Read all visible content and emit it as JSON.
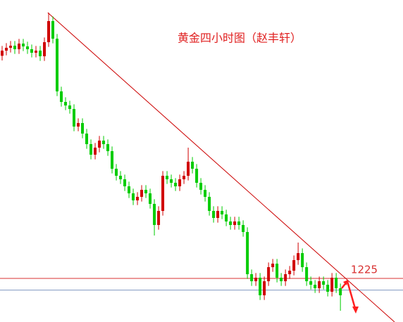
{
  "chart_data": {
    "type": "candlestick",
    "title": "黄金四小时图（赵丰轩）",
    "xlim": [
      -0.5,
      94.8
    ],
    "ylim": [
      1206.4,
      1343.8
    ],
    "up_color": "#d00000",
    "down_color": "#00cc00",
    "open": [
      1320.0,
      1322.2,
      1323.4,
      1324.3,
      1322.8,
      1325.2,
      1324.0,
      1322.8,
      1321.3,
      1322.2,
      1319.8,
      1325.8,
      1334.8,
      1327.3,
      1304.8,
      1300.3,
      1298.8,
      1297.3,
      1289.8,
      1291.3,
      1286.8,
      1282.3,
      1277.8,
      1280.8,
      1283.8,
      1282.3,
      1279.3,
      1271.8,
      1268.8,
      1267.3,
      1264.3,
      1261.3,
      1258.3,
      1259.8,
      1262.8,
      1261.3,
      1256.8,
      1247.8,
      1253.8,
      1268.8,
      1267.3,
      1265.8,
      1264.3,
      1267.3,
      1268.8,
      1274.8,
      1271.8,
      1265.8,
      1262.8,
      1259.8,
      1253.8,
      1250.8,
      1253.8,
      1252.3,
      1249.3,
      1247.8,
      1249.3,
      1247.8,
      1244.8,
      1226.8,
      1223.8,
      1225.3,
      1217.8,
      1223.8,
      1229.8,
      1231.3,
      1225.3,
      1223.8,
      1226.8,
      1228.3,
      1232.8,
      1235.8,
      1229.8,
      1223.8,
      1222.3,
      1220.8,
      1223.8,
      1222.3,
      1219.3,
      1225.3,
      1220.8
    ],
    "high": [
      1324.2,
      1325.4,
      1326.3,
      1326.3,
      1327.2,
      1327.2,
      1326.0,
      1324.8,
      1324.2,
      1324.2,
      1327.8,
      1338.4,
      1336.8,
      1329.3,
      1306.8,
      1302.3,
      1300.8,
      1299.3,
      1293.3,
      1293.3,
      1288.8,
      1284.3,
      1282.8,
      1285.8,
      1285.8,
      1284.3,
      1281.3,
      1273.8,
      1270.8,
      1269.3,
      1266.3,
      1263.3,
      1261.8,
      1264.8,
      1264.8,
      1263.3,
      1258.8,
      1255.8,
      1270.8,
      1270.8,
      1269.3,
      1267.8,
      1269.3,
      1270.8,
      1280.8,
      1276.8,
      1273.8,
      1267.8,
      1264.8,
      1261.8,
      1255.8,
      1255.8,
      1255.8,
      1254.3,
      1251.3,
      1251.3,
      1251.3,
      1249.8,
      1246.8,
      1228.8,
      1227.3,
      1227.3,
      1225.8,
      1231.8,
      1233.3,
      1233.3,
      1227.3,
      1228.8,
      1230.3,
      1234.8,
      1240.3,
      1237.8,
      1231.8,
      1225.8,
      1224.3,
      1225.8,
      1225.8,
      1224.3,
      1227.3,
      1227.3,
      1222.8
    ],
    "low": [
      1318.0,
      1320.2,
      1321.4,
      1320.8,
      1320.8,
      1322.0,
      1320.8,
      1319.3,
      1319.3,
      1317.8,
      1317.8,
      1323.8,
      1325.3,
      1302.8,
      1298.3,
      1296.8,
      1295.3,
      1287.8,
      1287.8,
      1284.8,
      1280.3,
      1275.8,
      1275.8,
      1278.8,
      1280.3,
      1277.3,
      1269.8,
      1266.8,
      1265.3,
      1262.3,
      1259.3,
      1256.3,
      1256.3,
      1257.8,
      1259.3,
      1254.8,
      1243.3,
      1245.8,
      1251.8,
      1265.3,
      1263.8,
      1262.3,
      1262.3,
      1265.3,
      1266.8,
      1269.8,
      1263.8,
      1260.8,
      1257.8,
      1251.8,
      1248.8,
      1248.8,
      1250.3,
      1247.3,
      1245.8,
      1245.8,
      1245.8,
      1242.8,
      1224.8,
      1221.8,
      1221.8,
      1215.8,
      1215.8,
      1221.8,
      1227.8,
      1223.3,
      1221.8,
      1221.8,
      1224.8,
      1226.3,
      1230.8,
      1227.8,
      1221.8,
      1220.3,
      1218.8,
      1218.8,
      1220.3,
      1217.3,
      1217.3,
      1218.8,
      1211.2
    ],
    "close": [
      1322.2,
      1323.4,
      1324.3,
      1322.8,
      1325.2,
      1324.0,
      1322.8,
      1321.3,
      1322.2,
      1319.8,
      1325.8,
      1334.8,
      1327.3,
      1304.8,
      1300.3,
      1298.8,
      1297.3,
      1289.8,
      1291.3,
      1286.8,
      1282.3,
      1277.8,
      1280.8,
      1283.8,
      1282.3,
      1279.3,
      1271.8,
      1268.8,
      1267.3,
      1264.3,
      1261.3,
      1258.3,
      1259.8,
      1262.8,
      1261.3,
      1256.8,
      1247.8,
      1253.8,
      1268.8,
      1267.3,
      1265.8,
      1264.3,
      1267.3,
      1268.8,
      1274.8,
      1271.8,
      1265.8,
      1262.8,
      1259.8,
      1253.8,
      1250.8,
      1253.8,
      1252.3,
      1249.3,
      1247.8,
      1249.3,
      1247.8,
      1244.8,
      1226.8,
      1223.8,
      1225.3,
      1217.8,
      1223.8,
      1229.8,
      1231.3,
      1225.3,
      1223.8,
      1226.8,
      1228.3,
      1232.8,
      1235.8,
      1229.8,
      1223.8,
      1222.3,
      1220.8,
      1223.8,
      1222.3,
      1219.3,
      1225.3,
      1220.8,
      1217.8
    ],
    "levels": [
      {
        "value": 1225,
        "color": "#d83030"
      },
      {
        "value": 1220,
        "color": "#7f98c0"
      }
    ],
    "trendline": {
      "x": [
        10.8,
        92.8
      ],
      "values": [
        1338.4,
        1206.4
      ],
      "color": "#cc0000"
    }
  }
}
